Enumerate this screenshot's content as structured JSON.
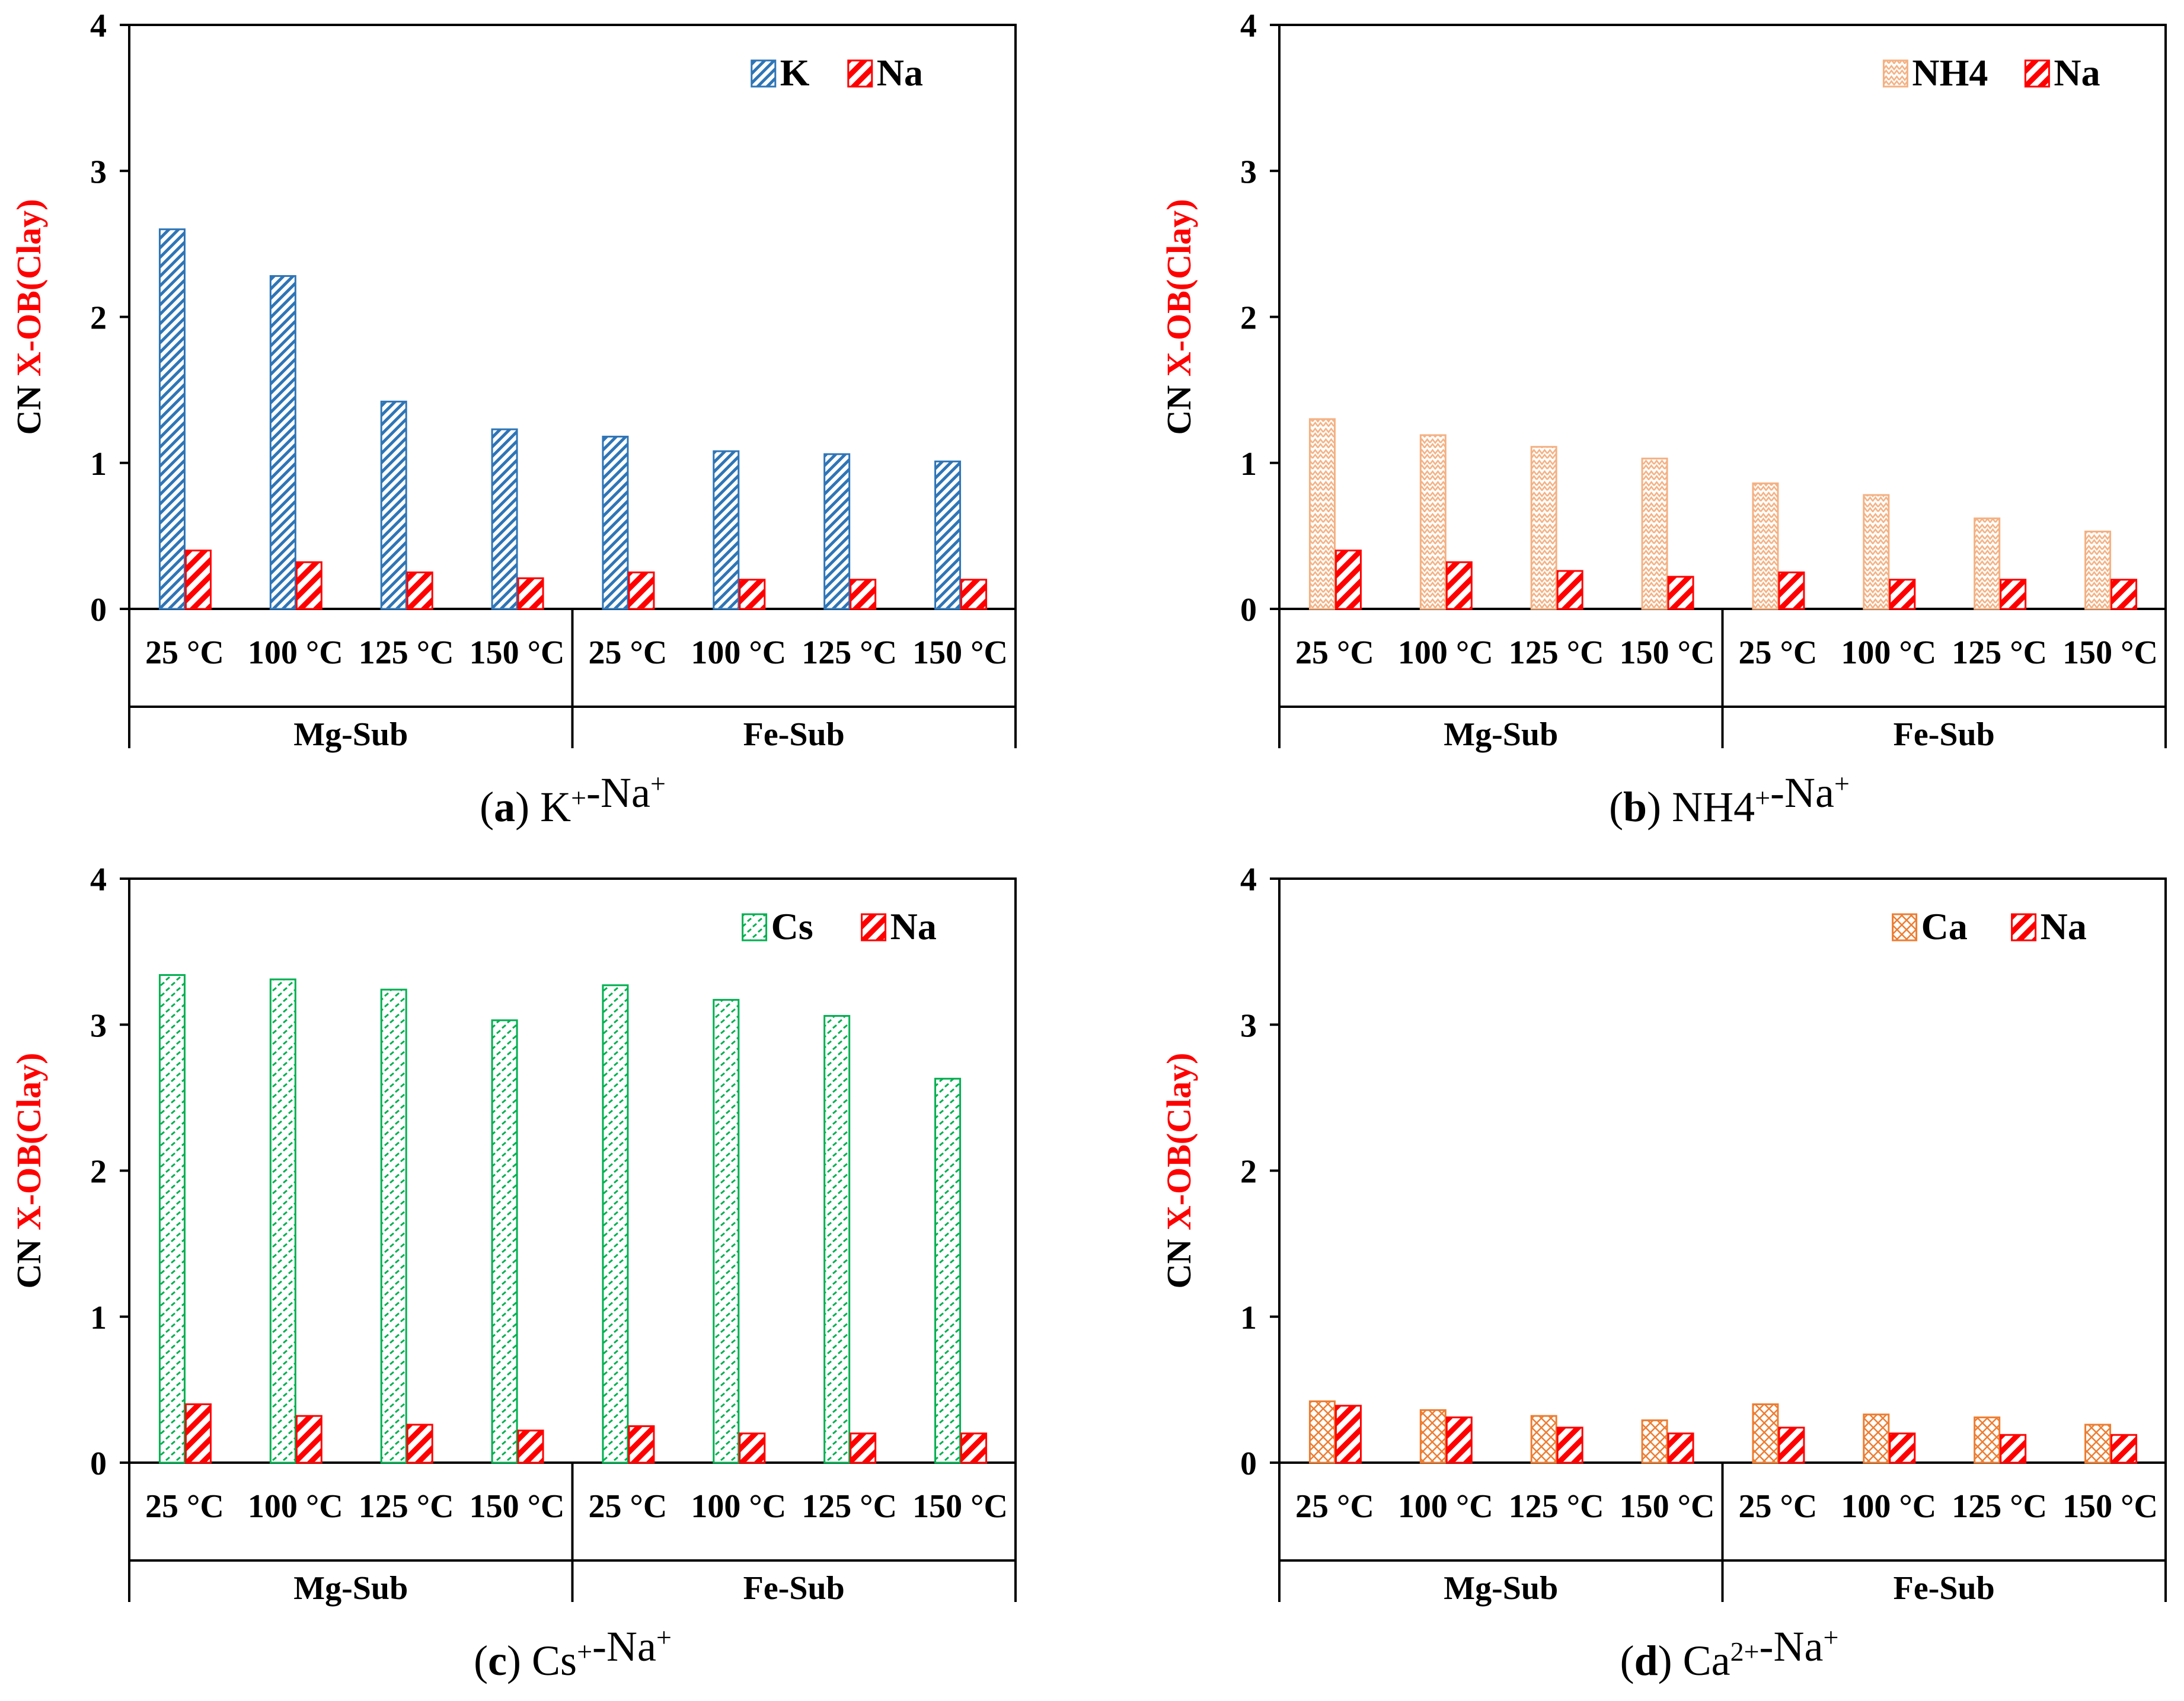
{
  "figure": {
    "y_axis_label_prefix": "CN",
    "y_axis_label_main": "X-OB(Clay)",
    "y_axis_label_color": "#ff0000",
    "groups": [
      "Mg-Sub",
      "Fe-Sub"
    ],
    "temperature_labels": [
      "25 °C",
      "100 °C",
      "125 °C",
      "150 °C"
    ]
  },
  "chart_data": [
    {
      "panel": "a",
      "type": "bar",
      "caption_letter": "a",
      "caption_parts": [
        [
          "K",
          "+"
        ],
        [
          "-Na",
          "+"
        ]
      ],
      "ylim": [
        0,
        4
      ],
      "yticks": [
        0,
        1,
        2,
        3,
        4
      ],
      "categories": [
        "25 °C",
        "100 °C",
        "125 °C",
        "150 °C",
        "25 °C",
        "100 °C",
        "125 °C",
        "150 °C"
      ],
      "groups": [
        "Mg-Sub",
        "Fe-Sub"
      ],
      "ylabel": "CN X-OB(Clay)",
      "series": [
        {
          "name": "K",
          "color": "#2e75b6",
          "pattern": "diag",
          "values": [
            2.6,
            2.28,
            1.42,
            1.23,
            1.18,
            1.08,
            1.06,
            1.01
          ]
        },
        {
          "name": "Na",
          "color": "#ff0000",
          "pattern": "thick",
          "values": [
            0.4,
            0.32,
            0.25,
            0.21,
            0.25,
            0.2,
            0.2,
            0.2
          ]
        }
      ]
    },
    {
      "panel": "b",
      "type": "bar",
      "caption_letter": "b",
      "caption_parts": [
        [
          "NH",
          ""
        ],
        [
          "4",
          "+"
        ],
        [
          "-Na",
          "+"
        ]
      ],
      "ylim": [
        0,
        4
      ],
      "yticks": [
        0,
        1,
        2,
        3,
        4
      ],
      "categories": [
        "25 °C",
        "100 °C",
        "125 °C",
        "150 °C",
        "25 °C",
        "100 °C",
        "125 °C",
        "150 °C"
      ],
      "groups": [
        "Mg-Sub",
        "Fe-Sub"
      ],
      "ylabel": "CN X-OB(Clay)",
      "series": [
        {
          "name": "NH4",
          "color": "#f4b183",
          "pattern": "zigzag",
          "values": [
            1.3,
            1.19,
            1.11,
            1.03,
            0.86,
            0.78,
            0.62,
            0.53
          ]
        },
        {
          "name": "Na",
          "color": "#ff0000",
          "pattern": "thick",
          "values": [
            0.4,
            0.32,
            0.26,
            0.22,
            0.25,
            0.2,
            0.2,
            0.2
          ]
        }
      ]
    },
    {
      "panel": "c",
      "type": "bar",
      "caption_letter": "c",
      "caption_parts": [
        [
          "Cs",
          "+"
        ],
        [
          "-Na",
          "+"
        ]
      ],
      "ylim": [
        0,
        4
      ],
      "yticks": [
        0,
        1,
        2,
        3,
        4
      ],
      "categories": [
        "25 °C",
        "100 °C",
        "125 °C",
        "150 °C",
        "25 °C",
        "100 °C",
        "125 °C",
        "150 °C"
      ],
      "groups": [
        "Mg-Sub",
        "Fe-Sub"
      ],
      "ylabel": "CN X-OB(Clay)",
      "series": [
        {
          "name": "Cs",
          "color": "#00b050",
          "pattern": "dash",
          "values": [
            3.34,
            3.31,
            3.24,
            3.03,
            3.27,
            3.17,
            3.06,
            2.63
          ]
        },
        {
          "name": "Na",
          "color": "#ff0000",
          "pattern": "thick",
          "values": [
            0.4,
            0.32,
            0.26,
            0.22,
            0.25,
            0.2,
            0.2,
            0.2
          ]
        }
      ]
    },
    {
      "panel": "d",
      "type": "bar",
      "caption_letter": "d",
      "caption_parts": [
        [
          "Ca",
          "2+"
        ],
        [
          "-Na",
          "+"
        ]
      ],
      "ylim": [
        0,
        4
      ],
      "yticks": [
        0,
        1,
        2,
        3,
        4
      ],
      "categories": [
        "25 °C",
        "100 °C",
        "125 °C",
        "150 °C",
        "25 °C",
        "100 °C",
        "125 °C",
        "150 °C"
      ],
      "groups": [
        "Mg-Sub",
        "Fe-Sub"
      ],
      "ylabel": "CN X-OB(Clay)",
      "series": [
        {
          "name": "Ca",
          "color": "#ed7d31",
          "pattern": "cross",
          "values": [
            0.42,
            0.36,
            0.32,
            0.29,
            0.4,
            0.33,
            0.31,
            0.26
          ]
        },
        {
          "name": "Na",
          "color": "#ff0000",
          "pattern": "thick",
          "values": [
            0.39,
            0.31,
            0.24,
            0.2,
            0.24,
            0.2,
            0.19,
            0.19
          ]
        }
      ]
    }
  ]
}
